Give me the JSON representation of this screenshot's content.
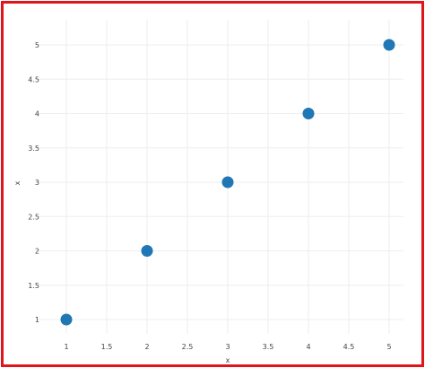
{
  "chart_data": {
    "type": "scatter",
    "title": "",
    "xlabel": "x",
    "ylabel": "x",
    "x": [
      1,
      2,
      3,
      4,
      5
    ],
    "y": [
      1,
      2,
      3,
      4,
      5
    ],
    "xlim": [
      0.7,
      5.3
    ],
    "ylim": [
      0.7,
      5.3
    ],
    "x_ticks": [
      "1",
      "1.5",
      "2",
      "2.5",
      "3",
      "3.5",
      "4",
      "4.5",
      "5"
    ],
    "y_ticks": [
      "1",
      "1.5",
      "2",
      "2.5",
      "3",
      "3.5",
      "4",
      "4.5",
      "5"
    ],
    "grid": true,
    "marker_color": "#1f77b4",
    "grid_color": "#eeeeee",
    "frame_color": "#e0141b"
  }
}
